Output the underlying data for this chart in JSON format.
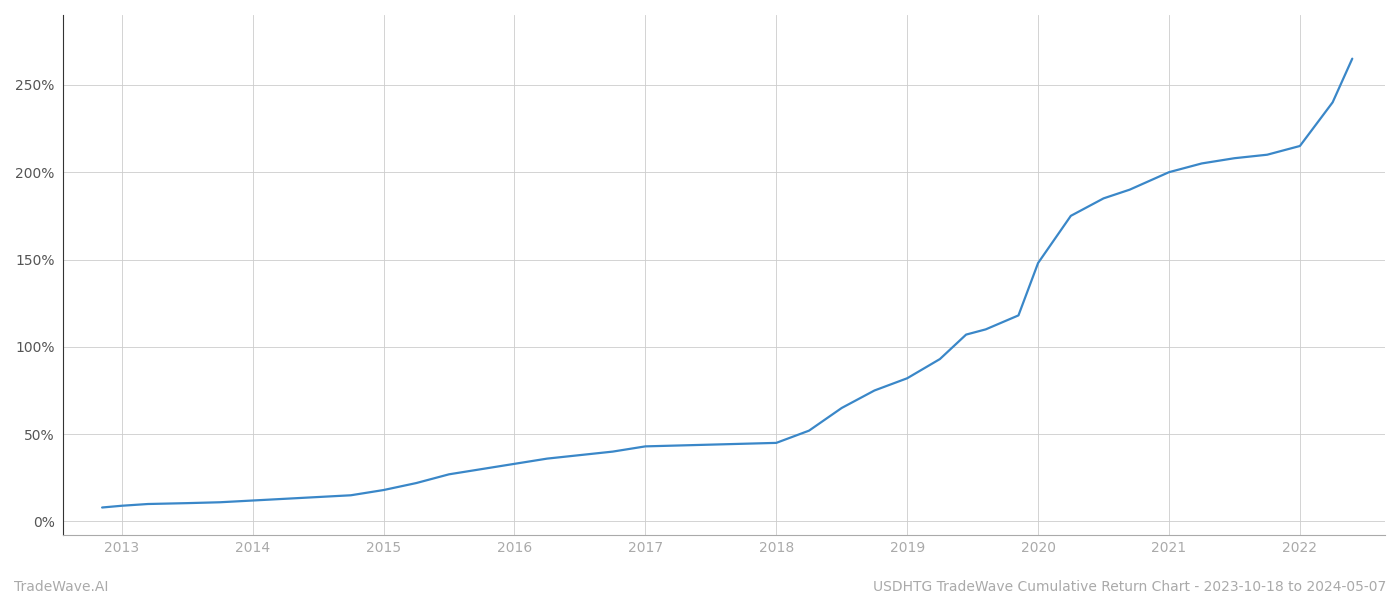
{
  "title": "USDHTG TradeWave Cumulative Return Chart - 2023-10-18 to 2024-05-07",
  "watermark": "TradeWave.AI",
  "line_color": "#3a87c8",
  "background_color": "#ffffff",
  "grid_color": "#cccccc",
  "x_years": [
    2013,
    2014,
    2015,
    2016,
    2017,
    2018,
    2019,
    2020,
    2021,
    2022
  ],
  "x_data": [
    2012.85,
    2013.0,
    2013.2,
    2013.5,
    2013.75,
    2014.0,
    2014.25,
    2014.5,
    2014.75,
    2015.0,
    2015.25,
    2015.5,
    2015.75,
    2016.0,
    2016.25,
    2016.5,
    2016.75,
    2017.0,
    2017.25,
    2017.5,
    2017.75,
    2018.0,
    2018.25,
    2018.5,
    2018.75,
    2019.0,
    2019.25,
    2019.45,
    2019.6,
    2019.85,
    2020.0,
    2020.25,
    2020.5,
    2020.7,
    2021.0,
    2021.25,
    2021.5,
    2021.75,
    2022.0,
    2022.25,
    2022.4
  ],
  "y_data": [
    8,
    9,
    10,
    10.5,
    11,
    12,
    13,
    14,
    15,
    18,
    22,
    27,
    30,
    33,
    36,
    38,
    40,
    43,
    43.5,
    44,
    44.5,
    45,
    52,
    65,
    75,
    82,
    93,
    107,
    110,
    118,
    148,
    175,
    185,
    190,
    200,
    205,
    208,
    210,
    215,
    240,
    265
  ],
  "yticks": [
    0,
    50,
    100,
    150,
    200,
    250
  ],
  "ylim": [
    -8,
    290
  ],
  "xlim": [
    2012.55,
    2022.65
  ],
  "title_fontsize": 10,
  "watermark_fontsize": 10,
  "tick_fontsize": 10,
  "line_width": 1.6
}
